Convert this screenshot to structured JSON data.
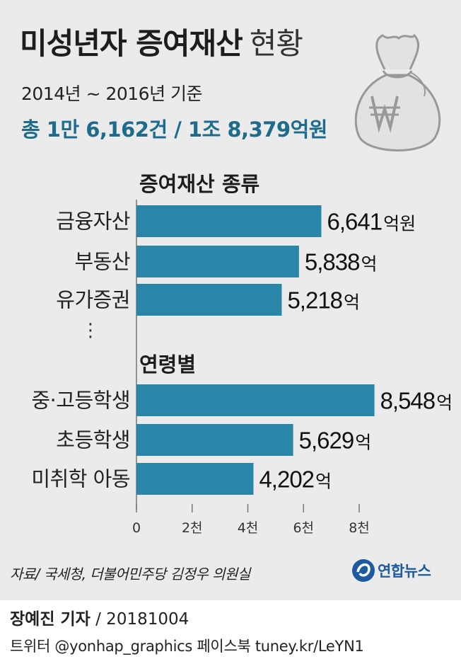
{
  "header": {
    "title_bold": "미성년자 증여재산",
    "title_light": "현황",
    "period": "2014년 ~ 2016년 기준",
    "total": "총 1만 6,162건 / 1조 8,379억원"
  },
  "chart_data": {
    "type": "bar",
    "orientation": "horizontal",
    "unit": "억원",
    "xlim": [
      0,
      8500
    ],
    "x_ticks": [
      {
        "value": 0,
        "label": "0"
      },
      {
        "value": 2000,
        "label": "2천"
      },
      {
        "value": 4000,
        "label": "4천"
      },
      {
        "value": 6000,
        "label": "6천"
      },
      {
        "value": 8000,
        "label": "8천"
      }
    ],
    "groups": [
      {
        "title": "증여재산 종류",
        "bars": [
          {
            "category": "금융자산",
            "value": 6641,
            "label_num": "6,641",
            "label_unit": "억원"
          },
          {
            "category": "부동산",
            "value": 5838,
            "label_num": "5,838",
            "label_unit": "억"
          },
          {
            "category": "유가증권",
            "value": 5218,
            "label_num": "5,218",
            "label_unit": "억"
          }
        ],
        "ellipsis": "⋮"
      },
      {
        "title": "연령별",
        "bars": [
          {
            "category": "중·고등학생",
            "value": 8548,
            "label_num": "8,548",
            "label_unit": "억"
          },
          {
            "category": "초등학생",
            "value": 5629,
            "label_num": "5,629",
            "label_unit": "억"
          },
          {
            "category": "미취학 아동",
            "value": 4202,
            "label_num": "4,202",
            "label_unit": "억"
          }
        ]
      }
    ],
    "bar_color": "#2a86a8",
    "grid": false
  },
  "footer": {
    "source": "자료/ 국세청, 더불어민주당 김정우 의원실",
    "logo_text": "연합뉴스",
    "byline_name": "장예진 기자",
    "byline_date": " / 20181004",
    "social": "트위터 @yonhap_graphics  페이스북 tuney.kr/LeYN1"
  },
  "icons": {
    "money_bag": "money-bag-won-icon",
    "logo": "yonhap-logo-icon"
  }
}
